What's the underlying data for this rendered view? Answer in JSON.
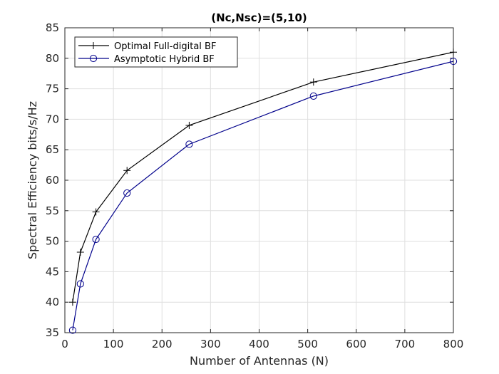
{
  "chart_data": {
    "type": "line",
    "title": "(Nc,Nsc)=(5,10)",
    "xlabel": "Number of Antennas (N)",
    "ylabel": "Spectral Efficiency bits/s/Hz",
    "xlim": [
      0,
      800
    ],
    "ylim": [
      35,
      85
    ],
    "xticks": [
      0,
      100,
      200,
      300,
      400,
      500,
      600,
      700,
      800
    ],
    "yticks": [
      35,
      40,
      45,
      50,
      55,
      60,
      65,
      70,
      75,
      80,
      85
    ],
    "grid": true,
    "legend_position": "top-left",
    "x": [
      16,
      32,
      64,
      128,
      256,
      512,
      800
    ],
    "series": [
      {
        "name": "Optimal Full-digital BF",
        "color": "#000000",
        "marker": "plus",
        "values": [
          40.0,
          48.2,
          54.8,
          61.6,
          69.0,
          76.1,
          81.0
        ]
      },
      {
        "name": "Asymptotic Hybrid BF",
        "color": "#00008b",
        "marker": "circle",
        "values": [
          35.4,
          43.0,
          50.3,
          57.9,
          65.9,
          73.8,
          79.5
        ]
      }
    ]
  }
}
